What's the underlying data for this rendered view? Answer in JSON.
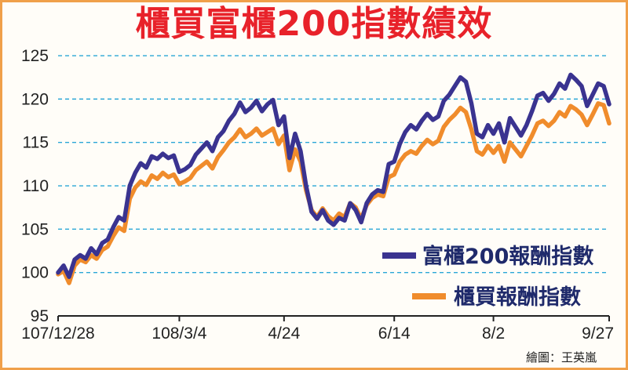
{
  "title": "櫃買富櫃200指數績效",
  "credit": "繪圖：王英嵐",
  "colors": {
    "series1": "#3a3390",
    "series2": "#f08c2c",
    "title": "#e8222a",
    "grid": "#2aa7d6"
  },
  "chart_data": {
    "type": "line",
    "title": "櫃買富櫃200指數績效",
    "ylim": [
      95,
      126
    ],
    "yticks": [
      95,
      100,
      105,
      110,
      115,
      120,
      125
    ],
    "xlim": [
      0,
      100
    ],
    "xticks": [
      {
        "x": 0,
        "label": "107/12/28"
      },
      {
        "x": 22,
        "label": "108/3/4"
      },
      {
        "x": 41,
        "label": "4/24"
      },
      {
        "x": 61,
        "label": "6/14"
      },
      {
        "x": 79,
        "label": "8/2"
      },
      {
        "x": 100,
        "label": "9/27"
      }
    ],
    "grid": "horizontal dashed",
    "legend_position": "bottom-right",
    "series": [
      {
        "name": "富櫃200報酬指數",
        "color": "#3a3390",
        "x": [
          0,
          1,
          2,
          3,
          4,
          5,
          6,
          7,
          8,
          9,
          10,
          11,
          12,
          13,
          14,
          15,
          16,
          17,
          18,
          19,
          20,
          21,
          22,
          23,
          24,
          25,
          26,
          27,
          28,
          29,
          30,
          31,
          32,
          33,
          34,
          35,
          36,
          37,
          38,
          39,
          40,
          41,
          42,
          43,
          44,
          45,
          46,
          47,
          48,
          49,
          50,
          51,
          52,
          53,
          54,
          55,
          56,
          57,
          58,
          59,
          60,
          61,
          62,
          63,
          64,
          65,
          66,
          67,
          68,
          69,
          70,
          71,
          72,
          73,
          74,
          75,
          76,
          77,
          78,
          79,
          80,
          81,
          82,
          83,
          84,
          85,
          86,
          87,
          88,
          89,
          90,
          91,
          92,
          93,
          94,
          95,
          96,
          97,
          98,
          99,
          100
        ],
        "values": [
          100.0,
          100.8,
          99.5,
          101.5,
          102.0,
          101.6,
          102.8,
          102.1,
          103.4,
          103.8,
          105.2,
          106.4,
          106.0,
          110.0,
          111.5,
          112.6,
          112.1,
          113.4,
          113.1,
          113.7,
          113.2,
          113.5,
          111.6,
          111.9,
          112.4,
          113.6,
          114.3,
          115.0,
          114.0,
          115.6,
          116.3,
          117.5,
          118.3,
          119.6,
          118.5,
          119.0,
          119.8,
          118.6,
          119.4,
          119.9,
          117.0,
          118.0,
          113.2,
          116.0,
          114.0,
          110.0,
          107.0,
          106.2,
          107.2,
          106.0,
          105.5,
          106.3,
          106.0,
          108.0,
          107.2,
          105.8,
          108.0,
          109.0,
          109.5,
          109.3,
          112.5,
          112.8,
          114.8,
          116.2,
          117.0,
          116.5,
          117.5,
          118.3,
          117.6,
          118.0,
          119.8,
          120.5,
          121.5,
          122.5,
          122.0,
          119.5,
          116.0,
          115.6,
          117.0,
          116.0,
          117.2,
          115.0,
          117.8,
          116.8,
          115.8,
          117.0,
          118.6,
          120.4,
          120.7,
          119.8,
          120.6,
          121.8,
          121.2,
          122.8,
          122.2,
          121.5,
          119.2,
          120.5,
          121.8,
          121.5,
          119.4
        ]
      },
      {
        "name": "櫃買報酬指數",
        "color": "#f08c2c",
        "x": [
          0,
          1,
          2,
          3,
          4,
          5,
          6,
          7,
          8,
          9,
          10,
          11,
          12,
          13,
          14,
          15,
          16,
          17,
          18,
          19,
          20,
          21,
          22,
          23,
          24,
          25,
          26,
          27,
          28,
          29,
          30,
          31,
          32,
          33,
          34,
          35,
          36,
          37,
          38,
          39,
          40,
          41,
          42,
          43,
          44,
          45,
          46,
          47,
          48,
          49,
          50,
          51,
          52,
          53,
          54,
          55,
          56,
          57,
          58,
          59,
          60,
          61,
          62,
          63,
          64,
          65,
          66,
          67,
          68,
          69,
          70,
          71,
          72,
          73,
          74,
          75,
          76,
          77,
          78,
          79,
          80,
          81,
          82,
          83,
          84,
          85,
          86,
          87,
          88,
          89,
          90,
          91,
          92,
          93,
          94,
          95,
          96,
          97,
          98,
          99,
          100
        ],
        "values": [
          99.8,
          100.2,
          98.8,
          100.8,
          101.5,
          101.2,
          102.0,
          101.6,
          102.6,
          103.0,
          104.2,
          105.2,
          104.8,
          108.5,
          109.8,
          110.5,
          110.1,
          111.2,
          110.8,
          111.5,
          111.0,
          111.3,
          110.2,
          110.5,
          110.9,
          111.8,
          112.3,
          112.8,
          112.0,
          113.3,
          114.1,
          115.0,
          115.6,
          116.5,
          115.6,
          116.0,
          116.6,
          115.8,
          116.2,
          116.6,
          114.8,
          115.8,
          111.8,
          114.2,
          112.8,
          109.5,
          107.2,
          106.4,
          107.4,
          106.5,
          106.0,
          106.8,
          106.4,
          108.0,
          107.5,
          106.2,
          107.8,
          108.6,
          109.0,
          108.8,
          111.0,
          111.3,
          112.8,
          113.6,
          114.0,
          113.7,
          114.6,
          115.3,
          114.8,
          115.2,
          116.8,
          117.6,
          118.2,
          119.0,
          118.5,
          116.5,
          114.0,
          113.6,
          114.6,
          113.8,
          114.6,
          112.8,
          115.0,
          114.2,
          113.4,
          114.6,
          115.8,
          117.2,
          117.5,
          116.9,
          117.5,
          118.5,
          118.0,
          119.2,
          118.8,
          118.2,
          117.0,
          118.2,
          119.5,
          119.3,
          117.2
        ]
      }
    ]
  }
}
